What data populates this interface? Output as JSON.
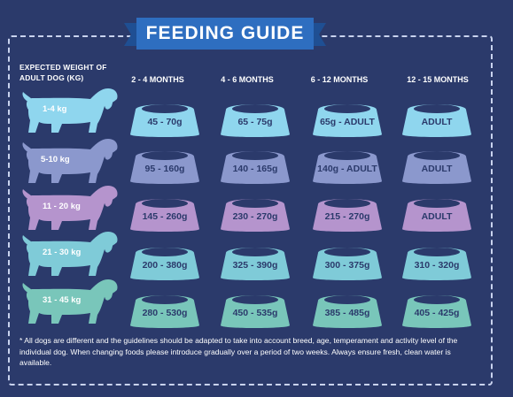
{
  "title": "FEEDING GUIDE",
  "weight_header": "EXPECTED WEIGHT OF ADULT DOG (kg)",
  "columns": [
    "2 - 4 MONTHS",
    "4 - 6 MONTHS",
    "6 - 12 MONTHS",
    "12 - 15 MONTHS"
  ],
  "rows": [
    {
      "weight": "1-4 kg",
      "color": "#8fd6ee",
      "values": [
        "45 - 70g",
        "65 - 75g",
        "65g - ADULT",
        "ADULT"
      ]
    },
    {
      "weight": "5-10 kg",
      "color": "#8b98cd",
      "values": [
        "95 - 160g",
        "140 - 165g",
        "140g - ADULT",
        "ADULT"
      ]
    },
    {
      "weight": "11 - 20 kg",
      "color": "#b594cd",
      "values": [
        "145 - 260g",
        "230 - 270g",
        "215 - 270g",
        "ADULT"
      ]
    },
    {
      "weight": "21 - 30 kg",
      "color": "#7fcbd8",
      "values": [
        "200 - 380g",
        "325 - 390g",
        "300 - 375g",
        "310 - 320g"
      ]
    },
    {
      "weight": "31 - 45 kg",
      "color": "#79c6ba",
      "values": [
        "280 - 530g",
        "450 - 535g",
        "385 - 485g",
        "405 - 425g"
      ]
    }
  ],
  "footnote": "* All dogs are different and the guidelines should be adapted to take into account breed, age, temperament and activity level of the individual dog. When changing foods please introduce gradually over a period of two weeks. Always ensure fresh, clean water is available.",
  "colors": {
    "background": "#2b3a6b",
    "banner": "#2e6ec0",
    "text": "#ffffff"
  }
}
